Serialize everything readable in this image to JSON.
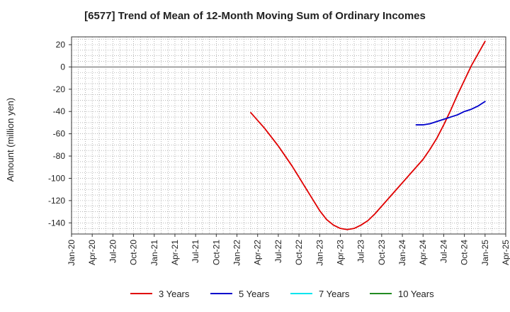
{
  "chart_data": {
    "type": "line",
    "title": "[6577]  Trend of Mean of 12-Month Moving Sum of Ordinary Incomes",
    "ylabel": "Amount (million yen)",
    "xlabel": "",
    "ylim": [
      -150,
      27
    ],
    "yticks": [
      20,
      0,
      -20,
      -40,
      -60,
      -80,
      -100,
      -120,
      -140
    ],
    "xticks": [
      "Jan-20",
      "Apr-20",
      "Jul-20",
      "Oct-20",
      "Jan-21",
      "Apr-21",
      "Jul-21",
      "Oct-21",
      "Jan-22",
      "Apr-22",
      "Jul-22",
      "Oct-22",
      "Jan-23",
      "Apr-23",
      "Jul-23",
      "Oct-23",
      "Jan-24",
      "Apr-24",
      "Jul-24",
      "Oct-24",
      "Jan-25",
      "Apr-25"
    ],
    "grid": true,
    "legend_position": "bottom",
    "series": [
      {
        "name": "3 Years",
        "color": "#e00000",
        "x": [
          "Mar-22",
          "Apr-22",
          "May-22",
          "Jun-22",
          "Jul-22",
          "Aug-22",
          "Sep-22",
          "Oct-22",
          "Nov-22",
          "Dec-22",
          "Jan-23",
          "Feb-23",
          "Mar-23",
          "Apr-23",
          "May-23",
          "Jun-23",
          "Jul-23",
          "Aug-23",
          "Sep-23",
          "Oct-23",
          "Nov-23",
          "Dec-23",
          "Jan-24",
          "Feb-24",
          "Mar-24",
          "Apr-24",
          "May-24",
          "Jun-24",
          "Jul-24",
          "Aug-24",
          "Sep-24",
          "Oct-24",
          "Nov-24",
          "Dec-24",
          "Jan-25"
        ],
        "values": [
          -41,
          -48,
          -55,
          -63,
          -71,
          -80,
          -89,
          -99,
          -109,
          -119,
          -129,
          -137,
          -142,
          -145,
          -146,
          -145,
          -142,
          -138,
          -132,
          -125,
          -118,
          -111,
          -104,
          -97,
          -90,
          -83,
          -74,
          -64,
          -52,
          -39,
          -25,
          -12,
          1,
          12,
          23
        ]
      },
      {
        "name": "5 Years",
        "color": "#0000cc",
        "x": [
          "Mar-24",
          "Apr-24",
          "May-24",
          "Jun-24",
          "Jul-24",
          "Aug-24",
          "Sep-24",
          "Oct-24",
          "Nov-24",
          "Dec-24",
          "Jan-25"
        ],
        "values": [
          -52,
          -52,
          -51,
          -49,
          -47,
          -45,
          -43,
          -40,
          -38,
          -35,
          -31
        ]
      },
      {
        "name": "7 Years",
        "color": "#00e5ee",
        "x": [],
        "values": []
      },
      {
        "name": "10 Years",
        "color": "#228b22",
        "x": [],
        "values": []
      }
    ]
  }
}
